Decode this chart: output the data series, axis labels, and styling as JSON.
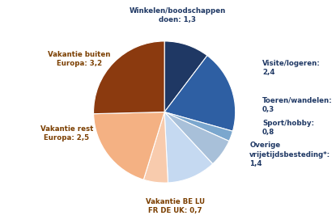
{
  "labels": [
    "Winkelen/boodschappen\ndoen: 1,3",
    "Visite/logeren:\n2,4",
    "Toeren/wandelen:\n0,3",
    "Sport/hobby:\n0,8",
    "Overige\nvrijetijdsbesteding*:\n1,4",
    "Vakantie BE LU\nFR DE UK: 0,7",
    "Vakantie rest\nEuropa: 2,5",
    "Vakantie buiten\nEuropa: 3,2"
  ],
  "label_colors": [
    "#1f3864",
    "#1f3864",
    "#1f3864",
    "#1f3864",
    "#1f3864",
    "#7b3f00",
    "#7b3f00",
    "#7b3f00"
  ],
  "values": [
    1.3,
    2.4,
    0.3,
    0.8,
    1.4,
    0.7,
    2.5,
    3.2
  ],
  "colors": [
    "#1f3864",
    "#2e5fa3",
    "#7ba7ce",
    "#a8c0d9",
    "#c5d9f1",
    "#f8cbad",
    "#f4b183",
    "#8B3A0F"
  ],
  "startangle": 90,
  "figsize": [
    4.15,
    2.77
  ],
  "dpi": 100,
  "label_fontsize": 6.2,
  "background_color": "#ffffff"
}
